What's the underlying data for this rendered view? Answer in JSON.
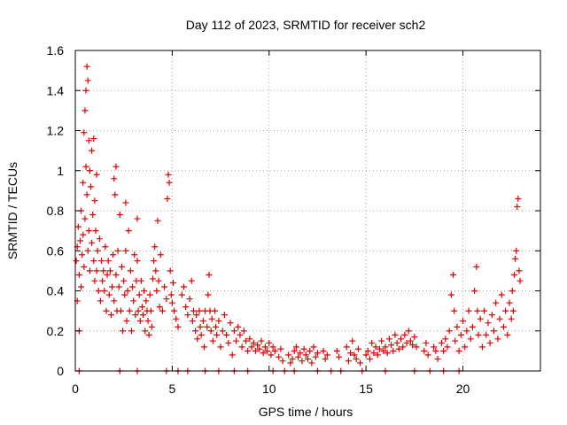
{
  "chart_data": {
    "type": "scatter",
    "title": "Day 112 of 2023, SRMTID for receiver sch2",
    "xlabel": "GPS time / hours",
    "ylabel": "SRMTID / TECUs",
    "xlim": [
      0,
      24
    ],
    "ylim": [
      0,
      1.6
    ],
    "x_ticks": [
      0,
      5,
      10,
      15,
      20
    ],
    "x_tick_labels": [
      "0",
      "5",
      "10",
      "15",
      "20"
    ],
    "y_ticks": [
      0,
      0.2,
      0.4,
      0.6,
      0.8,
      1.0,
      1.2,
      1.4,
      1.6
    ],
    "y_tick_labels": [
      "0",
      "0.2",
      "0.4",
      "0.6",
      "0.8",
      "1",
      "1.2",
      "1.4",
      "1.6"
    ],
    "grid": true,
    "marker": "plus",
    "color": "#e00000",
    "series": [
      {
        "name": "SRMTID",
        "points": [
          [
            0.05,
            0.55
          ],
          [
            0.1,
            0.62
          ],
          [
            0.1,
            0.35
          ],
          [
            0.15,
            0.72
          ],
          [
            0.2,
            0.48
          ],
          [
            0.2,
            0.2
          ],
          [
            0.25,
            0.65
          ],
          [
            0.3,
            0.8
          ],
          [
            0.3,
            0.42
          ],
          [
            0.35,
            0.58
          ],
          [
            0.4,
            0.94
          ],
          [
            0.4,
            0.68
          ],
          [
            0.45,
            1.19
          ],
          [
            0.45,
            0.52
          ],
          [
            0.5,
            1.3
          ],
          [
            0.5,
            0.76
          ],
          [
            0.55,
            1.4
          ],
          [
            0.55,
            1.02
          ],
          [
            0.6,
            1.52
          ],
          [
            0.6,
            0.88
          ],
          [
            0.65,
            1.45
          ],
          [
            0.65,
            0.6
          ],
          [
            0.7,
            1.15
          ],
          [
            0.7,
            0.7
          ],
          [
            0.75,
            1.0
          ],
          [
            0.75,
            0.5
          ],
          [
            0.8,
            0.92
          ],
          [
            0.85,
            1.1
          ],
          [
            0.85,
            0.64
          ],
          [
            0.9,
            0.78
          ],
          [
            0.95,
            1.16
          ],
          [
            0.95,
            0.55
          ],
          [
            1.0,
            0.85
          ],
          [
            1.0,
            0.45
          ],
          [
            1.05,
            0.7
          ],
          [
            1.1,
            0.98
          ],
          [
            1.1,
            0.5
          ],
          [
            1.15,
            0.6
          ],
          [
            1.2,
            0.4
          ],
          [
            1.25,
            0.66
          ],
          [
            1.3,
            0.35
          ],
          [
            1.35,
            0.55
          ],
          [
            1.4,
            0.45
          ],
          [
            1.45,
            0.5
          ],
          [
            1.5,
            0.4
          ],
          [
            1.55,
            0.62
          ],
          [
            1.6,
            0.3
          ],
          [
            1.65,
            0.48
          ],
          [
            1.7,
            0.55
          ],
          [
            1.75,
            0.38
          ],
          [
            1.8,
            0.5
          ],
          [
            1.85,
            0.28
          ],
          [
            1.9,
            0.42
          ],
          [
            1.95,
            0.58
          ],
          [
            2.0,
            0.96
          ],
          [
            2.0,
            0.35
          ],
          [
            2.05,
            0.88
          ],
          [
            2.1,
            1.02
          ],
          [
            2.1,
            0.48
          ],
          [
            2.15,
            0.3
          ],
          [
            2.2,
            0.6
          ],
          [
            2.25,
            0.42
          ],
          [
            2.3,
            0.78
          ],
          [
            2.35,
            0.3
          ],
          [
            2.4,
            0.52
          ],
          [
            2.45,
            0.2
          ],
          [
            2.5,
            0.45
          ],
          [
            2.55,
            0.38
          ],
          [
            2.6,
            0.84
          ],
          [
            2.6,
            0.6
          ],
          [
            2.65,
            0.25
          ],
          [
            2.7,
            0.4
          ],
          [
            2.75,
            0.7
          ],
          [
            2.8,
            0.3
          ],
          [
            2.85,
            0.5
          ],
          [
            2.9,
            0.2
          ],
          [
            2.95,
            0.42
          ],
          [
            3.0,
            0.35
          ],
          [
            3.05,
            0.58
          ],
          [
            3.1,
            0.28
          ],
          [
            3.15,
            0.45
          ],
          [
            3.2,
            0.55
          ],
          [
            3.2,
            0.76
          ],
          [
            3.25,
            0.3
          ],
          [
            3.3,
            0.38
          ],
          [
            3.35,
            0.25
          ],
          [
            3.4,
            0.45
          ],
          [
            3.45,
            0.32
          ],
          [
            3.5,
            0.28
          ],
          [
            3.55,
            0.4
          ],
          [
            3.6,
            0.2
          ],
          [
            3.65,
            0.35
          ],
          [
            3.7,
            0.3
          ],
          [
            3.75,
            0.25
          ],
          [
            3.8,
            0.18
          ],
          [
            3.85,
            0.38
          ],
          [
            3.9,
            0.3
          ],
          [
            3.95,
            0.22
          ],
          [
            4.0,
            0.46
          ],
          [
            4.05,
            0.55
          ],
          [
            4.1,
            0.62
          ],
          [
            4.15,
            0.5
          ],
          [
            4.2,
            0.4
          ],
          [
            4.25,
            0.75
          ],
          [
            4.3,
            0.45
          ],
          [
            4.35,
            0.32
          ],
          [
            4.4,
            0.58
          ],
          [
            4.5,
            0.3
          ],
          [
            4.6,
            0.42
          ],
          [
            4.7,
            0.36
          ],
          [
            4.75,
            0.86
          ],
          [
            4.8,
            0.98
          ],
          [
            4.85,
            0.94
          ],
          [
            4.9,
            0.5
          ],
          [
            4.95,
            0.38
          ],
          [
            5.0,
            0.34
          ],
          [
            5.05,
            0.44
          ],
          [
            5.1,
            0.3
          ],
          [
            5.2,
            0.26
          ],
          [
            5.3,
            0.22
          ],
          [
            5.5,
            0.38
          ],
          [
            5.6,
            0.42
          ],
          [
            5.7,
            0.32
          ],
          [
            5.8,
            0.28
          ],
          [
            5.9,
            0.36
          ],
          [
            6.0,
            0.45
          ],
          [
            6.05,
            0.25
          ],
          [
            6.1,
            0.3
          ],
          [
            6.2,
            0.2
          ],
          [
            6.25,
            0.28
          ],
          [
            6.3,
            0.16
          ],
          [
            6.4,
            0.3
          ],
          [
            6.45,
            0.22
          ],
          [
            6.5,
            0.18
          ],
          [
            6.6,
            0.25
          ],
          [
            6.65,
            0.12
          ],
          [
            6.7,
            0.3
          ],
          [
            6.8,
            0.22
          ],
          [
            6.85,
            0.38
          ],
          [
            6.9,
            0.48
          ],
          [
            6.95,
            0.3
          ],
          [
            7.0,
            0.2
          ],
          [
            7.05,
            0.26
          ],
          [
            7.1,
            0.15
          ],
          [
            7.2,
            0.3
          ],
          [
            7.25,
            0.22
          ],
          [
            7.3,
            0.18
          ],
          [
            7.4,
            0.25
          ],
          [
            7.5,
            0.12
          ],
          [
            7.6,
            0.2
          ],
          [
            7.7,
            0.28
          ],
          [
            7.8,
            0.18
          ],
          [
            7.9,
            0.14
          ],
          [
            8.0,
            0.24
          ],
          [
            8.1,
            0.08
          ],
          [
            8.2,
            0.2
          ],
          [
            8.3,
            0.15
          ],
          [
            8.4,
            0.22
          ],
          [
            8.5,
            0.18
          ],
          [
            8.6,
            0.12
          ],
          [
            8.7,
            0.2
          ],
          [
            8.8,
            0.15
          ],
          [
            8.9,
            0.1
          ],
          [
            9.0,
            0.16
          ],
          [
            9.1,
            0.12
          ],
          [
            9.2,
            0.14
          ],
          [
            9.3,
            0.1
          ],
          [
            9.4,
            0.13
          ],
          [
            9.5,
            0.11
          ],
          [
            9.6,
            0.15
          ],
          [
            9.7,
            0.09
          ],
          [
            9.8,
            0.12
          ],
          [
            9.9,
            0.1
          ],
          [
            10.0,
            0.14
          ],
          [
            10.1,
            0.08
          ],
          [
            10.2,
            0.12
          ],
          [
            10.3,
            0.1
          ],
          [
            10.5,
            0.07
          ],
          [
            10.6,
            0.11
          ],
          [
            10.7,
            0.05
          ],
          [
            11.0,
            0.08
          ],
          [
            11.1,
            0.04
          ],
          [
            11.2,
            0.06
          ],
          [
            11.3,
            0.1
          ],
          [
            11.4,
            0.12
          ],
          [
            11.5,
            0.07
          ],
          [
            11.6,
            0.09
          ],
          [
            11.7,
            0.05
          ],
          [
            11.8,
            0.11
          ],
          [
            11.9,
            0.08
          ],
          [
            12.0,
            0.06
          ],
          [
            12.1,
            0.1
          ],
          [
            12.2,
            0.04
          ],
          [
            12.3,
            0.12
          ],
          [
            12.4,
            0.07
          ],
          [
            12.5,
            0.09
          ],
          [
            12.8,
            0.1
          ],
          [
            12.9,
            0.06
          ],
          [
            13.0,
            0.08
          ],
          [
            13.5,
            0.1
          ],
          [
            13.6,
            0.07
          ],
          [
            14.0,
            0.12
          ],
          [
            14.1,
            0.05
          ],
          [
            14.2,
            0.09
          ],
          [
            14.3,
            0.15
          ],
          [
            14.4,
            0.08
          ],
          [
            14.5,
            0.06
          ],
          [
            14.6,
            0.11
          ],
          [
            14.7,
            0.04
          ],
          [
            15.0,
            0.08
          ],
          [
            15.1,
            0.1
          ],
          [
            15.2,
            0.06
          ],
          [
            15.3,
            0.14
          ],
          [
            15.4,
            0.09
          ],
          [
            15.5,
            0.12
          ],
          [
            15.6,
            0.08
          ],
          [
            15.7,
            0.11
          ],
          [
            15.8,
            0.15
          ],
          [
            15.9,
            0.1
          ],
          [
            16.0,
            0.12
          ],
          [
            16.1,
            0.09
          ],
          [
            16.2,
            0.16
          ],
          [
            16.3,
            0.13
          ],
          [
            16.4,
            0.1
          ],
          [
            16.5,
            0.18
          ],
          [
            16.6,
            0.14
          ],
          [
            16.7,
            0.11
          ],
          [
            16.8,
            0.16
          ],
          [
            16.9,
            0.12
          ],
          [
            17.0,
            0.18
          ],
          [
            17.1,
            0.14
          ],
          [
            17.2,
            0.2
          ],
          [
            17.3,
            0.15
          ],
          [
            17.4,
            0.13
          ],
          [
            17.5,
            0.17
          ],
          [
            17.6,
            0.12
          ],
          [
            18.0,
            0.1
          ],
          [
            18.1,
            0.14
          ],
          [
            18.2,
            0.08
          ],
          [
            18.5,
            0.12
          ],
          [
            18.6,
            0.1
          ],
          [
            18.7,
            0.06
          ],
          [
            18.9,
            0.14
          ],
          [
            19.0,
            0.1
          ],
          [
            19.1,
            0.16
          ],
          [
            19.2,
            0.12
          ],
          [
            19.3,
            0.2
          ],
          [
            19.4,
            0.38
          ],
          [
            19.5,
            0.48
          ],
          [
            19.55,
            0.3
          ],
          [
            19.6,
            0.15
          ],
          [
            19.7,
            0.22
          ],
          [
            19.8,
            0.1
          ],
          [
            19.9,
            0.18
          ],
          [
            20.0,
            0.25
          ],
          [
            20.1,
            0.12
          ],
          [
            20.2,
            0.2
          ],
          [
            20.3,
            0.3
          ],
          [
            20.4,
            0.16
          ],
          [
            20.5,
            0.22
          ],
          [
            20.6,
            0.4
          ],
          [
            20.7,
            0.52
          ],
          [
            20.75,
            0.3
          ],
          [
            20.8,
            0.18
          ],
          [
            20.9,
            0.26
          ],
          [
            21.0,
            0.12
          ],
          [
            21.1,
            0.3
          ],
          [
            21.2,
            0.18
          ],
          [
            21.3,
            0.24
          ],
          [
            21.4,
            0.14
          ],
          [
            21.5,
            0.28
          ],
          [
            21.6,
            0.2
          ],
          [
            21.7,
            0.34
          ],
          [
            21.8,
            0.16
          ],
          [
            21.9,
            0.26
          ],
          [
            22.0,
            0.38
          ],
          [
            22.1,
            0.22
          ],
          [
            22.2,
            0.3
          ],
          [
            22.3,
            0.18
          ],
          [
            22.4,
            0.34
          ],
          [
            22.5,
            0.26
          ],
          [
            22.55,
            0.4
          ],
          [
            22.6,
            0.3
          ],
          [
            22.65,
            0.48
          ],
          [
            22.7,
            0.56
          ],
          [
            22.75,
            0.6
          ],
          [
            22.8,
            0.82
          ],
          [
            22.85,
            0.86
          ],
          [
            22.9,
            0.5
          ],
          [
            22.95,
            0.45
          ],
          [
            0.2,
            0.0
          ],
          [
            2.3,
            0.0
          ],
          [
            3.2,
            0.0
          ],
          [
            4.7,
            0.0
          ],
          [
            5.3,
            0.0
          ],
          [
            5.8,
            0.0
          ],
          [
            6.7,
            0.0
          ],
          [
            7.4,
            0.0
          ],
          [
            8.2,
            0.0
          ],
          [
            8.9,
            0.0
          ],
          [
            10.2,
            0.0
          ],
          [
            10.8,
            0.0
          ],
          [
            11.3,
            0.0
          ],
          [
            12.5,
            0.0
          ],
          [
            13.2,
            0.0
          ],
          [
            13.7,
            0.0
          ],
          [
            14.8,
            0.0
          ],
          [
            16.0,
            0.0
          ],
          [
            17.5,
            0.0
          ],
          [
            18.3,
            0.0
          ],
          [
            19.0,
            0.0
          ],
          [
            19.8,
            0.0
          ]
        ]
      }
    ]
  }
}
